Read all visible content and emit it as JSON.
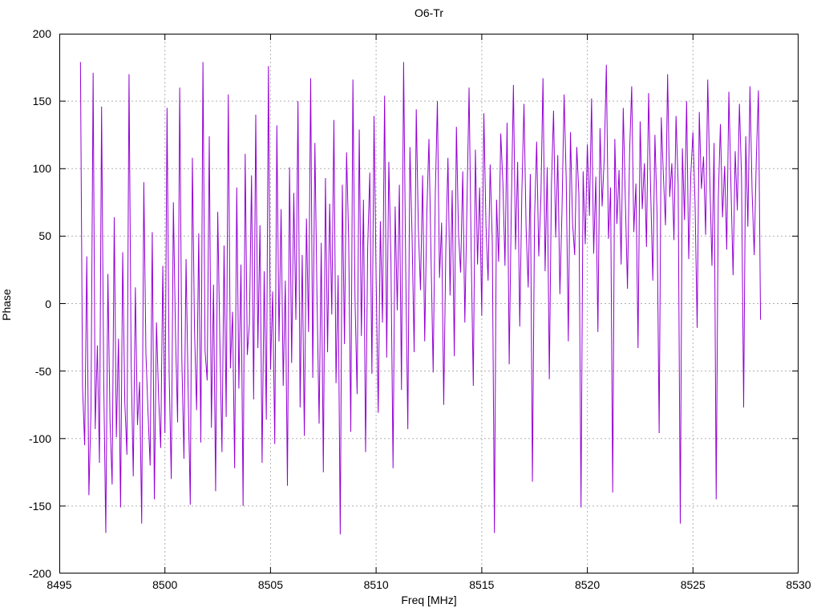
{
  "colors": {
    "line": "#9400D3",
    "grid": "#b0b0b0",
    "axis": "#000000",
    "text": "#000000",
    "background": "#ffffff"
  },
  "chart_data": {
    "type": "line",
    "title": "O6-Tr",
    "xlabel": "Freq [MHz]",
    "ylabel": "Phase",
    "xlim": [
      8495,
      8530
    ],
    "ylim": [
      -200,
      200
    ],
    "x_ticks": [
      8495,
      8500,
      8505,
      8510,
      8515,
      8520,
      8525,
      8530
    ],
    "y_ticks": [
      -200,
      -150,
      -100,
      -50,
      0,
      50,
      100,
      150,
      200
    ],
    "grid": true,
    "legend": "none",
    "series": [
      {
        "name": "O6-Tr",
        "x_start": 8496.0,
        "x_step": 0.1,
        "phase": [
          179,
          -62,
          -105,
          35,
          -142,
          -78,
          171,
          -93,
          -31,
          -118,
          146,
          -55,
          -170,
          22,
          -87,
          -134,
          64,
          -99,
          -26,
          -151,
          38,
          -73,
          -112,
          170,
          -44,
          -128,
          12,
          -90,
          -58,
          -163,
          90,
          -37,
          -81,
          -120,
          53,
          -145,
          -14,
          -69,
          -107,
          28,
          -96,
          145,
          -52,
          -130,
          75,
          -23,
          -88,
          160,
          -41,
          -115,
          33,
          -66,
          -149,
          108,
          -19,
          -79,
          52,
          -103,
          179,
          -35,
          -57,
          124,
          -92,
          14,
          -139,
          68,
          -27,
          -110,
          43,
          -84,
          155,
          -48,
          -6,
          -122,
          86,
          -63,
          29,
          -150,
          111,
          -38,
          -15,
          95,
          -71,
          140,
          -33,
          58,
          -118,
          24,
          -86,
          176,
          -49,
          9,
          -104,
          132,
          -28,
          70,
          -61,
          17,
          -135,
          101,
          -44,
          82,
          -12,
          150,
          -77,
          36,
          -98,
          63,
          -21,
          167,
          -55,
          119,
          5,
          -89,
          45,
          -125,
          93,
          -36,
          74,
          -8,
          136,
          -59,
          21,
          -171,
          88,
          -30,
          112,
          47,
          -95,
          166,
          3,
          -67,
          129,
          -24,
          77,
          -110,
          42,
          97,
          -52,
          139,
          18,
          -81,
          61,
          -14,
          154,
          -40,
          105,
          33,
          -122,
          72,
          -5,
          88,
          -64,
          179,
          26,
          -93,
          116,
          51,
          -36,
          144,
          55,
          10,
          95,
          -28,
          67,
          122,
          34,
          -51,
          80,
          150,
          19,
          60,
          -75,
          41,
          108,
          6,
          84,
          -39,
          131,
          52,
          23,
          98,
          -14,
          73,
          160,
          38,
          -61,
          114,
          29,
          86,
          -9,
          141,
          58,
          17,
          103,
          45,
          -170,
          77,
          31,
          126,
          90,
          28,
          134,
          -45,
          71,
          162,
          40,
          105,
          -17,
          83,
          148,
          56,
          12,
          96,
          -132,
          63,
          120,
          35,
          78,
          167,
          24,
          101,
          -56,
          88,
          143,
          49,
          110,
          7,
          69,
          155,
          92,
          -28,
          127,
          60,
          36,
          116,
          81,
          -151,
          98,
          44,
          118,
          65,
          152,
          37,
          94,
          -21,
          130,
          72,
          108,
          177,
          48,
          86,
          -140,
          122,
          59,
          99,
          29,
          145,
          76,
          11,
          112,
          161,
          53,
          89,
          -33,
          135,
          70,
          104,
          42,
          156,
          82,
          17,
          125,
          67,
          -96,
          138,
          95,
          58,
          170,
          79,
          104,
          47,
          139,
          88,
          -163,
          115,
          62,
          150,
          33,
          96,
          127,
          74,
          -18,
          142,
          85,
          109,
          51,
          166,
          91,
          28,
          119,
          -145,
          78,
          133,
          64,
          102,
          40,
          157,
          87,
          21,
          113,
          69,
          148,
          94,
          -77,
          124,
          57,
          161,
          83,
          36,
          107,
          158,
          -12
        ]
      }
    ]
  }
}
